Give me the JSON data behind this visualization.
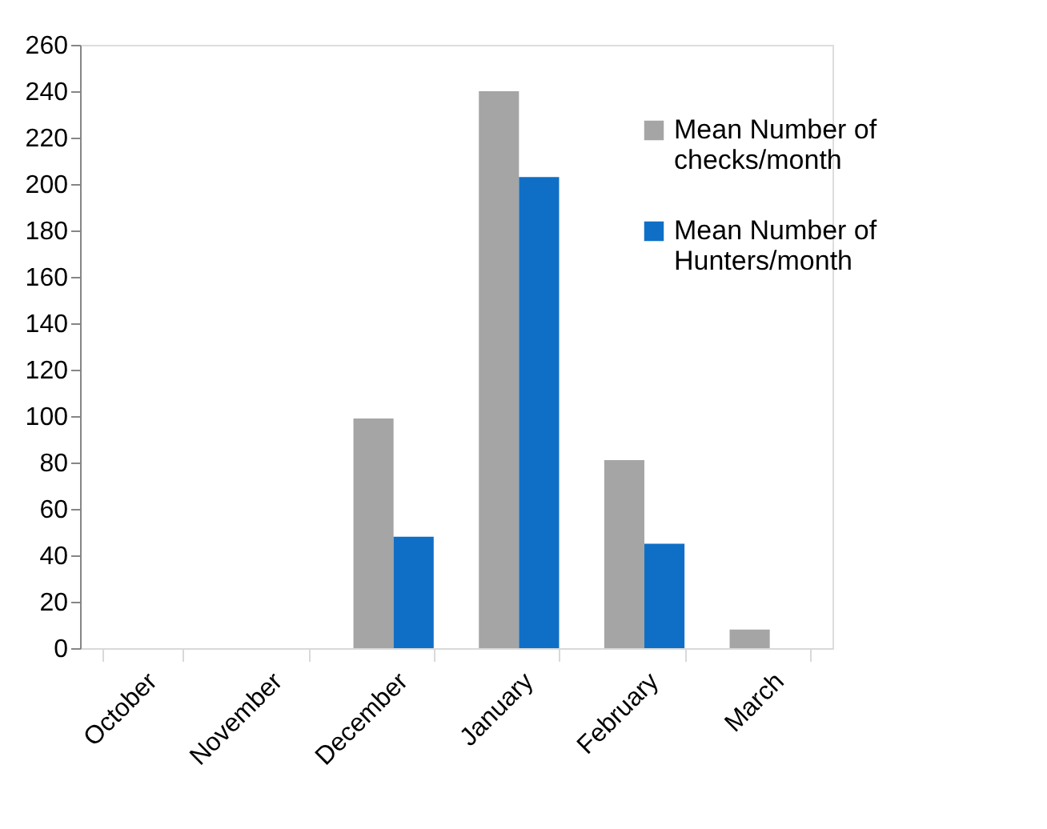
{
  "chart_data": {
    "type": "bar",
    "categories": [
      "October",
      "November",
      "December",
      "January",
      "February",
      "March"
    ],
    "series": [
      {
        "name": "Mean Number of checks/month",
        "color": "#a5a5a5",
        "values": [
          0,
          0,
          99,
          240,
          81,
          8
        ]
      },
      {
        "name": "Mean Number of Hunters/month",
        "color": "#0f6fc6",
        "values": [
          0,
          0,
          48,
          203,
          45,
          0
        ]
      }
    ],
    "ylim": [
      0,
      260
    ],
    "yticks": [
      0,
      20,
      40,
      60,
      80,
      100,
      120,
      140,
      160,
      180,
      200,
      220,
      240,
      260
    ],
    "grid": false,
    "legend": "top right"
  }
}
